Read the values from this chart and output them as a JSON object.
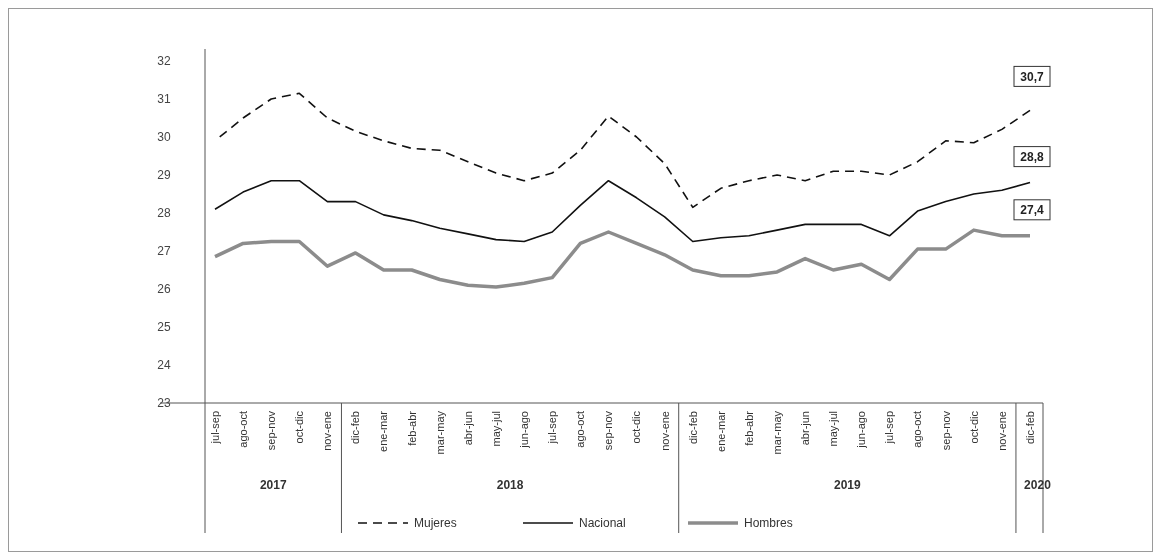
{
  "chart_data": {
    "type": "line",
    "categories": [
      "jul-sep",
      "ago-oct",
      "sep-nov",
      "oct-dic",
      "nov-ene",
      "dic-feb",
      "ene-mar",
      "feb-abr",
      "mar-may",
      "abr-jun",
      "may-jul",
      "jun-ago",
      "jul-sep",
      "ago-oct",
      "sep-nov",
      "oct-dic",
      "nov-ene",
      "dic-feb",
      "ene-mar",
      "feb-abr",
      "mar-may",
      "abr-jun",
      "may-jul",
      "jun-ago",
      "jul-sep",
      "ago-oct",
      "sep-nov",
      "oct-dic",
      "nov-ene",
      "dic-feb"
    ],
    "series": [
      {
        "name": "Mujeres",
        "color": "#111111",
        "line_style": "dashed",
        "values": [
          29.9,
          30.5,
          31.0,
          31.15,
          30.5,
          30.15,
          29.9,
          29.7,
          29.65,
          29.35,
          29.05,
          28.85,
          29.05,
          29.65,
          30.55,
          30.0,
          29.3,
          28.15,
          28.65,
          28.85,
          29.0,
          28.85,
          29.1,
          29.1,
          29.0,
          29.35,
          29.9,
          29.85,
          30.2,
          30.7
        ],
        "value_labels": [
          null,
          null,
          null,
          null,
          null,
          null,
          null,
          null,
          null,
          null,
          null,
          null,
          null,
          null,
          null,
          null,
          null,
          null,
          null,
          null,
          null,
          null,
          null,
          null,
          null,
          null,
          null,
          null,
          null,
          "30,7"
        ]
      },
      {
        "name": "Nacional",
        "color": "#111111",
        "line_style": "solid",
        "values": [
          28.1,
          28.55,
          28.85,
          28.85,
          28.3,
          28.3,
          27.95,
          27.8,
          27.6,
          27.45,
          27.3,
          27.25,
          27.5,
          28.2,
          28.85,
          28.4,
          27.9,
          27.25,
          27.35,
          27.4,
          27.55,
          27.7,
          27.7,
          27.7,
          27.4,
          28.05,
          28.3,
          28.5,
          28.6,
          28.8
        ],
        "value_labels": [
          null,
          null,
          null,
          null,
          null,
          null,
          null,
          null,
          null,
          null,
          null,
          null,
          null,
          null,
          null,
          null,
          null,
          null,
          null,
          null,
          null,
          null,
          null,
          null,
          null,
          null,
          null,
          null,
          null,
          "28,8"
        ]
      },
      {
        "name": "Hombres",
        "color": "#8c8c8c",
        "line_style": "solid",
        "values": [
          26.85,
          27.2,
          27.25,
          27.25,
          26.6,
          26.95,
          26.5,
          26.5,
          26.25,
          26.1,
          26.05,
          26.15,
          26.3,
          27.2,
          27.5,
          27.2,
          26.9,
          26.5,
          26.35,
          26.35,
          26.45,
          26.8,
          26.5,
          26.65,
          26.25,
          27.05,
          27.05,
          27.55,
          27.4,
          27.4
        ],
        "value_labels": [
          null,
          null,
          null,
          null,
          null,
          null,
          null,
          null,
          null,
          null,
          null,
          null,
          null,
          null,
          null,
          null,
          null,
          null,
          null,
          null,
          null,
          null,
          null,
          null,
          null,
          null,
          null,
          null,
          null,
          "27,4"
        ]
      }
    ],
    "annotations": [
      "2017",
      "2018",
      "2019",
      "2020"
    ],
    "ylim": [
      23,
      32
    ],
    "yticks": [
      23,
      24,
      25,
      26,
      27,
      28,
      29,
      30,
      31,
      32
    ],
    "grid": false,
    "legend": "bottom",
    "marker": "none"
  }
}
